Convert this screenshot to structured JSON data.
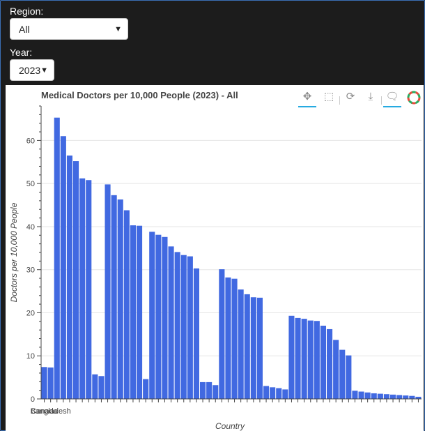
{
  "controls": {
    "region_label": "Region:",
    "region_value": "All",
    "year_label": "Year:",
    "year_value": "2023"
  },
  "toolbar": {
    "icons": [
      "pan-icon",
      "box-zoom-icon",
      "reset-icon",
      "save-icon",
      "hover-icon",
      "bokeh-logo-icon"
    ]
  },
  "colors": {
    "bar": "#4169e1",
    "accent": "#26aae1"
  },
  "chart_data": {
    "type": "bar",
    "title": "Medical Doctors per 10,000 People (2023) - All",
    "xlabel": "Country",
    "ylabel": "Doctors per 10,000 People",
    "ylim": [
      0,
      68
    ],
    "yticks": [
      0,
      10,
      20,
      30,
      40,
      50,
      60
    ],
    "grid": true,
    "categories": [
      "Canada",
      "Bangladesh",
      "",
      "",
      "",
      "",
      "",
      "",
      "",
      "",
      "",
      "",
      "",
      "",
      "",
      "",
      "",
      "",
      "",
      "",
      "",
      "",
      "",
      "",
      "",
      "",
      "",
      "",
      "",
      "",
      "",
      "",
      "",
      "",
      "",
      "",
      "",
      "",
      "",
      "",
      "",
      "",
      "",
      "",
      "",
      "",
      "",
      "",
      "",
      "",
      "",
      "",
      "",
      "",
      "",
      "",
      "",
      "",
      "",
      ""
    ],
    "values": [
      7.4,
      7.3,
      65.3,
      61.0,
      56.5,
      55.2,
      51.2,
      50.8,
      5.7,
      5.3,
      49.8,
      47.3,
      46.3,
      43.8,
      40.3,
      40.2,
      4.6,
      38.8,
      38.1,
      37.6,
      35.4,
      34.1,
      33.4,
      33.1,
      30.3,
      3.9,
      3.9,
      3.2,
      30.1,
      28.2,
      27.9,
      25.4,
      24.3,
      23.6,
      23.5,
      3.0,
      2.7,
      2.5,
      2.2,
      19.3,
      18.8,
      18.6,
      18.2,
      18.1,
      17.0,
      16.2,
      13.7,
      11.4,
      10.1,
      1.9,
      1.7,
      1.5,
      1.3,
      1.2,
      1.1,
      1.0,
      0.9,
      0.8,
      0.7,
      0.5
    ]
  }
}
